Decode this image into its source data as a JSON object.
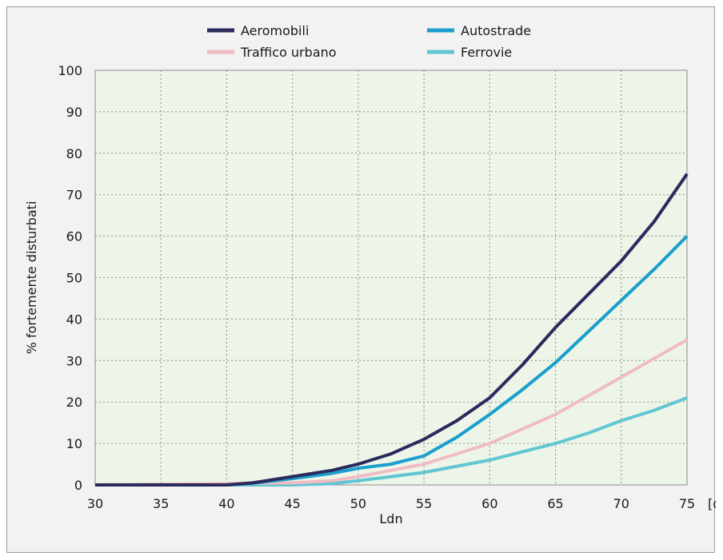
{
  "chart_data": {
    "type": "line",
    "xlabel": "Ldn",
    "x_unit_label": "[dB(A)]",
    "ylabel": "% fortemente disturbati",
    "xlim": [
      30,
      75
    ],
    "ylim": [
      0,
      100
    ],
    "x_ticks": [
      30,
      35,
      40,
      45,
      50,
      55,
      60,
      65,
      70,
      75
    ],
    "y_ticks": [
      0,
      10,
      20,
      30,
      40,
      50,
      60,
      70,
      80,
      90,
      100
    ],
    "grid": true,
    "plot_background": "#edf5e8",
    "legend_position": "top",
    "series": [
      {
        "name": "Aeromobili",
        "color": "#2b2a5e",
        "x": [
          30,
          40,
          42,
          45,
          48,
          50,
          52.5,
          55,
          57.5,
          60,
          62.5,
          65,
          67.5,
          70,
          72.5,
          75
        ],
        "y": [
          0,
          0,
          0.5,
          2,
          3.5,
          5,
          7.5,
          11,
          15.5,
          21,
          29,
          38,
          46,
          54,
          63.5,
          75
        ]
      },
      {
        "name": "Autostrade",
        "color": "#1a9fcc",
        "x": [
          30,
          40,
          42,
          45,
          48,
          50,
          52.5,
          55,
          57.5,
          60,
          62.5,
          65,
          67.5,
          70,
          72.5,
          75
        ],
        "y": [
          0,
          0,
          0.4,
          1.5,
          2.8,
          4,
          5,
          7,
          11.5,
          17,
          23,
          29.5,
          37,
          44.5,
          52,
          60
        ]
      },
      {
        "name": "Traffico urbano",
        "color": "#f0bcc4",
        "x": [
          30,
          45,
          48,
          50,
          52.5,
          55,
          57.5,
          60,
          62.5,
          65,
          67.5,
          70,
          72.5,
          75
        ],
        "y": [
          0,
          0.5,
          1,
          2,
          3.5,
          5,
          7.5,
          10,
          13.5,
          17,
          21.5,
          26,
          30.5,
          35
        ]
      },
      {
        "name": "Ferrovie",
        "color": "#62c6d2",
        "x": [
          30,
          45,
          48,
          50,
          52.5,
          55,
          57.5,
          60,
          62.5,
          65,
          67.5,
          70,
          72.5,
          75
        ],
        "y": [
          0,
          0,
          0.3,
          1,
          2,
          3,
          4.5,
          6,
          8,
          10,
          12.5,
          15.5,
          18,
          21
        ]
      }
    ]
  }
}
